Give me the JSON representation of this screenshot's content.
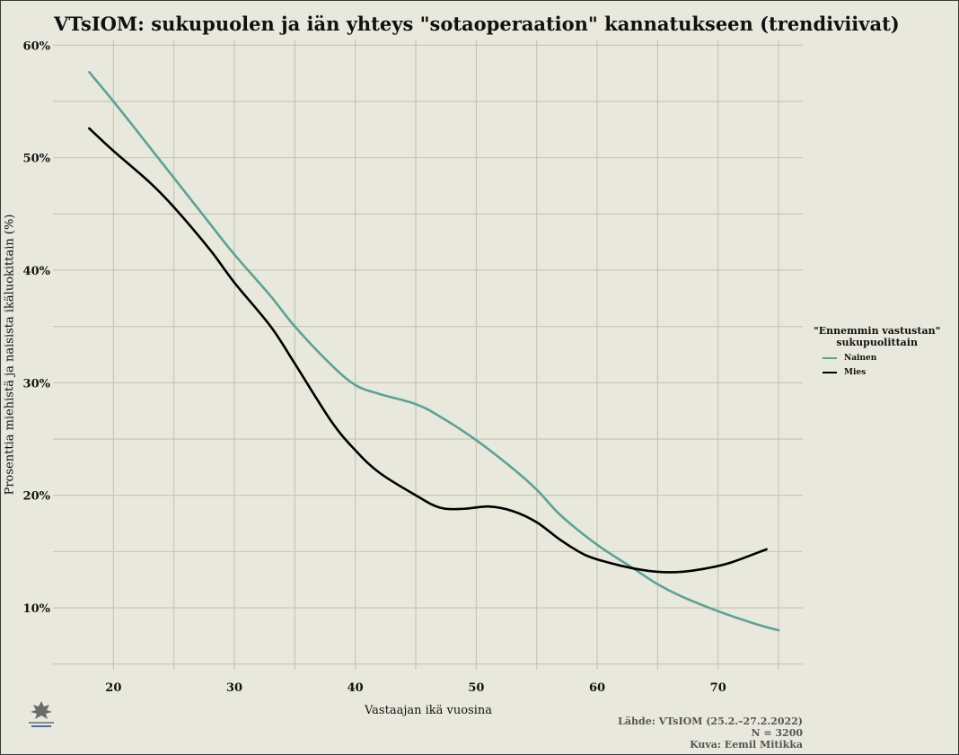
{
  "colors": {
    "nainen": "#5aa396",
    "mies": "#000000",
    "background": "#e9e8dc",
    "grid": "#c4c3b6"
  },
  "icons": {
    "logo": "university-of-helsinki-logo-icon"
  },
  "chart_data": {
    "type": "line",
    "title": "VTsIOM: sukupuolen ja iän yhteys \"sotaoperaation\" kannatukseen (trendiviivat)",
    "xlabel": "Vastaajan ikä vuosina",
    "ylabel": "Prosenttia miehistä ja naisista ikäluokittain (%)",
    "xlim": [
      15,
      77
    ],
    "ylim": [
      4.5,
      60.5
    ],
    "x_ticks": [
      20,
      30,
      40,
      50,
      60,
      70
    ],
    "x_tick_labels": [
      "20",
      "30",
      "40",
      "50",
      "60",
      "70"
    ],
    "y_ticks": [
      10,
      20,
      30,
      40,
      50,
      60
    ],
    "y_tick_labels": [
      "10%",
      "20%",
      "30%",
      "40%",
      "50%",
      "60%"
    ],
    "grid": true,
    "legend": {
      "position": "right",
      "title": "\"Ennemmin vastustan\"",
      "title_line2": "sukupuolittain"
    },
    "series": [
      {
        "name": "Nainen",
        "color": "#5aa396",
        "points": [
          [
            18,
            57.6
          ],
          [
            20,
            55.0
          ],
          [
            22,
            52.3
          ],
          [
            25,
            48.2
          ],
          [
            28,
            44.1
          ],
          [
            30,
            41.4
          ],
          [
            33,
            37.7
          ],
          [
            35,
            35.0
          ],
          [
            38,
            31.6
          ],
          [
            40,
            29.8
          ],
          [
            42,
            29.0
          ],
          [
            45,
            28.1
          ],
          [
            47,
            27.0
          ],
          [
            50,
            24.9
          ],
          [
            53,
            22.4
          ],
          [
            55,
            20.5
          ],
          [
            57,
            18.2
          ],
          [
            60,
            15.6
          ],
          [
            63,
            13.5
          ],
          [
            65,
            12.1
          ],
          [
            67,
            11.0
          ],
          [
            70,
            9.7
          ],
          [
            73,
            8.6
          ],
          [
            75,
            8.0
          ]
        ]
      },
      {
        "name": "Mies",
        "color": "#000000",
        "points": [
          [
            18,
            52.6
          ],
          [
            20,
            50.6
          ],
          [
            23,
            47.8
          ],
          [
            25,
            45.6
          ],
          [
            28,
            41.8
          ],
          [
            30,
            38.9
          ],
          [
            33,
            35.0
          ],
          [
            35,
            31.7
          ],
          [
            38,
            26.6
          ],
          [
            40,
            24.0
          ],
          [
            42,
            22.0
          ],
          [
            45,
            20.0
          ],
          [
            47,
            18.9
          ],
          [
            49,
            18.8
          ],
          [
            51,
            19.0
          ],
          [
            53,
            18.6
          ],
          [
            55,
            17.6
          ],
          [
            57,
            16.0
          ],
          [
            59,
            14.7
          ],
          [
            61,
            14.0
          ],
          [
            63,
            13.5
          ],
          [
            65,
            13.2
          ],
          [
            67,
            13.2
          ],
          [
            69,
            13.5
          ],
          [
            71,
            14.0
          ],
          [
            74,
            15.2
          ]
        ]
      }
    ]
  },
  "source": {
    "line1": "Lähde: VTsIOM (25.2.–27.2.2022)",
    "line2": "N = 3200",
    "line3": "Kuva: Eemil Mitikka"
  }
}
